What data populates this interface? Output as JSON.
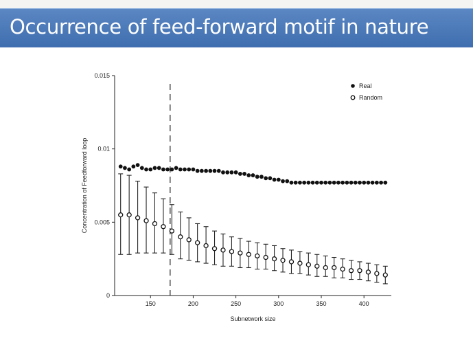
{
  "slide": {
    "title": "Occurrence of feed-forward motif in nature",
    "title_bar_color": "#4a78b8"
  },
  "chart_data": {
    "type": "scatter",
    "title": "",
    "xlabel": "Subnetwork size",
    "ylabel": "Concentration of Feedforward loop",
    "xlim": [
      108,
      432
    ],
    "ylim": [
      0,
      0.015
    ],
    "x_ticks": [
      150,
      200,
      250,
      300,
      350,
      400
    ],
    "x_tick_labels": [
      "150",
      "200",
      "250",
      "300",
      "350",
      "400"
    ],
    "y_ticks": [
      0,
      0.005,
      0.01,
      0.015
    ],
    "y_tick_labels": [
      "0",
      "0.005",
      "0.01",
      "0.015"
    ],
    "grid": false,
    "legend_position": "top-right",
    "reference_line": {
      "x": 173,
      "style": "dashed"
    },
    "series": [
      {
        "name": "Real",
        "marker": "filled-circle",
        "x": [
          115,
          120,
          125,
          130,
          135,
          140,
          145,
          150,
          155,
          160,
          165,
          170,
          175,
          180,
          185,
          190,
          195,
          200,
          205,
          210,
          215,
          220,
          225,
          230,
          235,
          240,
          245,
          250,
          255,
          260,
          265,
          270,
          275,
          280,
          285,
          290,
          295,
          300,
          305,
          310,
          315,
          320,
          325,
          330,
          335,
          340,
          345,
          350,
          355,
          360,
          365,
          370,
          375,
          380,
          385,
          390,
          395,
          400,
          405,
          410,
          415,
          420,
          425
        ],
        "y": [
          0.0088,
          0.0087,
          0.0086,
          0.0088,
          0.0089,
          0.0087,
          0.0086,
          0.0086,
          0.0087,
          0.0087,
          0.0086,
          0.0086,
          0.0086,
          0.0087,
          0.0086,
          0.0086,
          0.0086,
          0.0086,
          0.0085,
          0.0085,
          0.0085,
          0.0085,
          0.0085,
          0.0085,
          0.0084,
          0.0084,
          0.0084,
          0.0084,
          0.0083,
          0.0083,
          0.0082,
          0.0082,
          0.0081,
          0.0081,
          0.008,
          0.008,
          0.0079,
          0.0079,
          0.0078,
          0.0078,
          0.0077,
          0.0077,
          0.0077,
          0.0077,
          0.0077,
          0.0077,
          0.0077,
          0.0077,
          0.0077,
          0.0077,
          0.0077,
          0.0077,
          0.0077,
          0.0077,
          0.0077,
          0.0077,
          0.0077,
          0.0077,
          0.0077,
          0.0077,
          0.0077,
          0.0077,
          0.0077
        ]
      },
      {
        "name": "Random",
        "marker": "open-circle",
        "x": [
          115,
          125,
          135,
          145,
          155,
          165,
          175,
          185,
          195,
          205,
          215,
          225,
          235,
          245,
          255,
          265,
          275,
          285,
          295,
          305,
          315,
          325,
          335,
          345,
          355,
          365,
          375,
          385,
          395,
          405,
          415,
          425
        ],
        "y": [
          0.0055,
          0.0055,
          0.0053,
          0.0051,
          0.0049,
          0.0047,
          0.0044,
          0.004,
          0.0038,
          0.0036,
          0.0034,
          0.0032,
          0.0031,
          0.003,
          0.0029,
          0.0028,
          0.0027,
          0.0026,
          0.0025,
          0.0024,
          0.0023,
          0.0022,
          0.0021,
          0.002,
          0.0019,
          0.0019,
          0.0018,
          0.0017,
          0.0017,
          0.0016,
          0.0015,
          0.0014
        ],
        "error_low": [
          0.0028,
          0.0028,
          0.0029,
          0.0029,
          0.0029,
          0.0029,
          0.0028,
          0.0025,
          0.0024,
          0.0023,
          0.0022,
          0.0021,
          0.002,
          0.002,
          0.0019,
          0.0019,
          0.0018,
          0.0018,
          0.0017,
          0.0016,
          0.0015,
          0.0015,
          0.0014,
          0.0013,
          0.0013,
          0.0012,
          0.0012,
          0.0011,
          0.0011,
          0.001,
          0.0009,
          0.0008
        ],
        "error_high": [
          0.0083,
          0.0082,
          0.0078,
          0.0074,
          0.007,
          0.0066,
          0.0062,
          0.0057,
          0.0053,
          0.0049,
          0.0047,
          0.0044,
          0.0042,
          0.004,
          0.0039,
          0.0037,
          0.0036,
          0.0035,
          0.0034,
          0.0032,
          0.0031,
          0.003,
          0.0029,
          0.0028,
          0.0027,
          0.0026,
          0.0025,
          0.0024,
          0.0023,
          0.0022,
          0.0021,
          0.002
        ]
      }
    ]
  }
}
